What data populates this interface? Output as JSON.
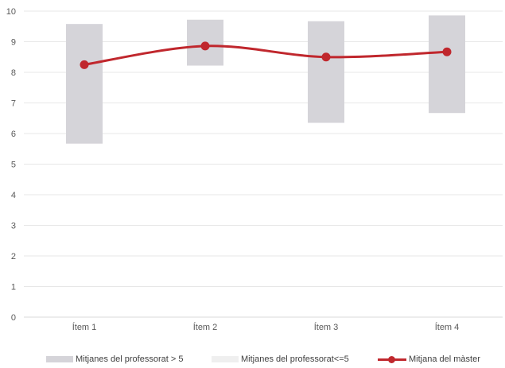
{
  "chart_data": {
    "type": "box-range-line",
    "categories": [
      "Ítem 1",
      "Ítem 2",
      "Ítem 3",
      "Ítem 4"
    ],
    "ylim": [
      0,
      10
    ],
    "yticks": [
      "0",
      "1",
      "2",
      "3",
      "4",
      "5",
      "6",
      "7",
      "8",
      "9",
      "10"
    ],
    "grid": true,
    "legend_position": "bottom",
    "series": [
      {
        "name": "Mitjanes del professorat > 5",
        "kind": "range",
        "color": "#d5d4d9",
        "low": [
          5.67,
          8.22,
          6.35,
          6.67
        ],
        "high": [
          9.58,
          9.72,
          9.67,
          9.86
        ]
      },
      {
        "name": "Mitjanes del professorat<=5",
        "kind": "range",
        "color": "#efefef",
        "low": [],
        "high": []
      },
      {
        "name": "Mitjana del màster",
        "kind": "line",
        "color": "#c0272d",
        "values": [
          8.25,
          8.86,
          8.5,
          8.67
        ]
      }
    ]
  }
}
